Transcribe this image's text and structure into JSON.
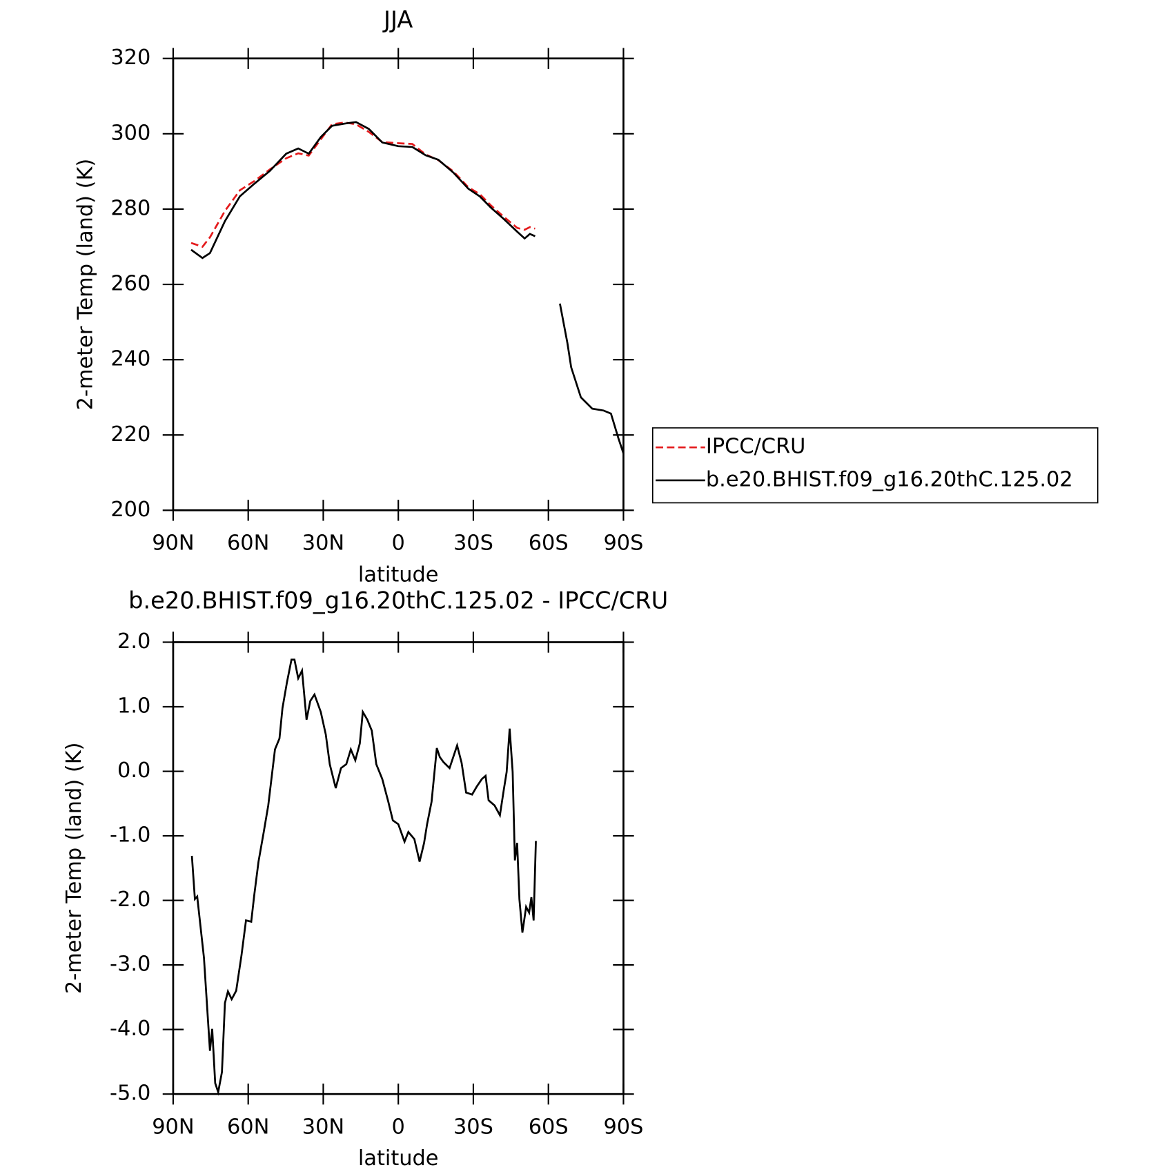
{
  "chart_data": [
    {
      "type": "line",
      "title": "JJA",
      "xlabel": "latitude",
      "ylabel": "2-meter Temp (land) (K)",
      "xlim": [
        90,
        -90
      ],
      "ylim": [
        200,
        320
      ],
      "xticks": [
        {
          "value": 90,
          "label": "90N"
        },
        {
          "value": 60,
          "label": "60N"
        },
        {
          "value": 30,
          "label": "30N"
        },
        0,
        {
          "value": -30,
          "label": "30S"
        },
        {
          "value": -60,
          "label": "60S"
        },
        {
          "value": -90,
          "label": "90S"
        }
      ],
      "yticks": [
        200,
        220,
        240,
        260,
        280,
        300,
        320
      ],
      "legend": "right",
      "x": [
        82.8,
        78.3,
        75.3,
        69.3,
        63.3,
        57.4,
        51.4,
        44.8,
        40,
        35.8,
        31,
        26.5,
        21.4,
        16.9,
        11.8,
        6.4,
        0,
        -5.6,
        -10.9,
        -16,
        -22,
        -28,
        -32.5,
        -37,
        -42.1,
        -47.5,
        -50.5,
        -52.6,
        -54.7,
        -60,
        -64.6,
        -67.6,
        -69.1,
        -73,
        -77.5,
        -82,
        -85,
        -88,
        -90
      ],
      "series": [
        {
          "name": "IPCC/CRU",
          "color": "#e41a1c",
          "line_style": "dashed",
          "values": [
            271,
            270,
            272.5,
            279.5,
            285,
            287.5,
            290.5,
            293.5,
            294.8,
            294.2,
            298.5,
            302.5,
            303,
            302.5,
            300.5,
            297.8,
            297.5,
            297.3,
            294.5,
            293,
            290,
            285.8,
            284,
            281,
            278,
            275,
            274.5,
            275.2,
            274.8,
            null,
            null,
            null,
            null,
            null,
            null,
            null,
            null,
            null,
            null
          ]
        },
        {
          "name": "b.e20.BHIST.f09_g16.20thC.125.02",
          "color": "#000000",
          "line_style": "solid",
          "values": [
            269.2,
            267,
            268.3,
            276.8,
            283.4,
            286.8,
            290.1,
            294.7,
            296.1,
            294.7,
            299.1,
            302.1,
            302.7,
            303.1,
            301.3,
            297.7,
            296.7,
            296.5,
            294.3,
            293.1,
            289.7,
            285.4,
            283.4,
            280.4,
            277.4,
            274,
            272.2,
            273.4,
            272.8,
            null,
            254.9,
            244.4,
            238,
            230,
            227,
            226.5,
            225.7,
            219.1,
            215.1
          ]
        }
      ]
    },
    {
      "type": "line",
      "title": "b.e20.BHIST.f09_g16.20thC.125.02 - IPCC/CRU",
      "xlabel": "latitude",
      "ylabel": "2-meter Temp (land) (K)",
      "xlim": [
        90,
        -90
      ],
      "ylim": [
        -5,
        2
      ],
      "xticks": [
        {
          "value": 90,
          "label": "90N"
        },
        {
          "value": 60,
          "label": "60N"
        },
        {
          "value": 30,
          "label": "30N"
        },
        0,
        {
          "value": -30,
          "label": "30S"
        },
        {
          "value": -60,
          "label": "60S"
        },
        {
          "value": -90,
          "label": "90S"
        }
      ],
      "yticks": [
        {
          "value": -5,
          "label": "-5.0"
        },
        {
          "value": -4,
          "label": "-4.0"
        },
        {
          "value": -3,
          "label": "-3.0"
        },
        {
          "value": -2,
          "label": "-2.0"
        },
        {
          "value": -1,
          "label": "-1.0"
        },
        {
          "value": 0,
          "label": "0.0"
        },
        {
          "value": 1,
          "label": "1.0"
        },
        {
          "value": 2,
          "label": "2.0"
        }
      ],
      "x": [
        82.5,
        81.3,
        80.4,
        77.7,
        75.3,
        74.4,
        73.2,
        72,
        70.5,
        69.3,
        68.1,
        66.6,
        64.8,
        62.7,
        60.9,
        58.8,
        57.6,
        55.9,
        53.8,
        52,
        49.3,
        47.5,
        46.3,
        44.5,
        42.7,
        41.5,
        40,
        38.5,
        36.7,
        35.2,
        33.5,
        31,
        29,
        27.4,
        25,
        22.9,
        20.8,
        19,
        17.2,
        15.4,
        14.2,
        12.4,
        10.6,
        8.8,
        6.4,
        4,
        2.2,
        0,
        -2.5,
        -4,
        -6.4,
        -8.5,
        -10.3,
        -11.5,
        -13.3,
        -15.4,
        -16.6,
        -18.1,
        -20.5,
        -23.5,
        -25.3,
        -27.1,
        -29.5,
        -31.3,
        -33.4,
        -34.9,
        -36.1,
        -38.5,
        -40.6,
        -42.1,
        -43.3,
        -44.5,
        -45.7,
        -46.6,
        -47.5,
        -48.4,
        -49.6,
        -51.1,
        -52.3,
        -53.2,
        -54.1,
        -55
      ],
      "series": [
        {
          "color": "#000000",
          "line_style": "solid",
          "values": [
            -1.31,
            -1.98,
            -1.94,
            -2.89,
            -4.33,
            -3.99,
            -4.83,
            -4.97,
            -4.66,
            -3.59,
            -3.41,
            -3.53,
            -3.4,
            -2.85,
            -2.31,
            -2.33,
            -1.92,
            -1.4,
            -0.94,
            -0.53,
            0.34,
            0.51,
            0.98,
            1.38,
            1.73,
            1.73,
            1.44,
            1.56,
            0.8,
            1.09,
            1.19,
            0.92,
            0.57,
            0.11,
            -0.26,
            0.05,
            0.11,
            0.34,
            0.17,
            0.43,
            0.92,
            0.8,
            0.63,
            0.11,
            -0.12,
            -0.47,
            -0.76,
            -0.82,
            -1.09,
            -0.94,
            -1.05,
            -1.4,
            -1.11,
            -0.82,
            -0.47,
            0.36,
            0.22,
            0.14,
            0.05,
            0.4,
            0.13,
            -0.33,
            -0.36,
            -0.24,
            -0.12,
            -0.07,
            -0.45,
            -0.53,
            -0.68,
            -0.3,
            -0.01,
            0.66,
            -0.01,
            -1.38,
            -1.11,
            -1.98,
            -2.5,
            -2.1,
            -2.19,
            -1.95,
            -2.31,
            -1.08
          ]
        }
      ]
    }
  ]
}
